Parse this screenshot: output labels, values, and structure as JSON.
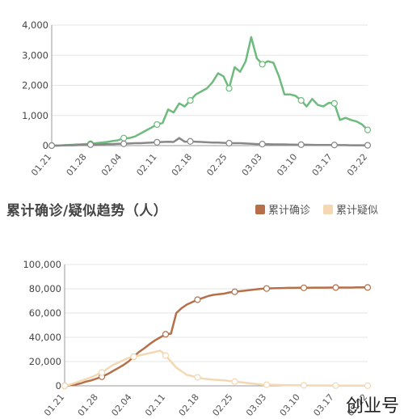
{
  "section_title": "累计确诊/疑似趋势（人）",
  "watermark": "创业号",
  "colors": {
    "confirmed": "#b5704a",
    "suspected": "#f3d8b3",
    "green": "#6dbb7d",
    "gray": "#888888",
    "grid": "#e6e6e6"
  },
  "chart_data": [
    {
      "type": "line",
      "x_ticks": [
        "01.21",
        "01.28",
        "02.04",
        "02.11",
        "02.18",
        "02.25",
        "03.03",
        "03.10",
        "03.17",
        "03.22"
      ],
      "ylim": [
        0,
        4000
      ],
      "y_ticks": [
        "0",
        "1,000",
        "2,000",
        "3,000",
        "4,000"
      ],
      "series": [
        {
          "color": "green",
          "values": [
            0,
            0,
            10,
            20,
            30,
            40,
            50,
            60,
            80,
            100,
            120,
            150,
            180,
            250,
            250,
            300,
            400,
            500,
            600,
            700,
            750,
            1200,
            1100,
            1400,
            1300,
            1500,
            1700,
            1800,
            1900,
            2100,
            2400,
            2300,
            1900,
            2600,
            2450,
            2800,
            3600,
            2900,
            2700,
            2800,
            2750,
            2300,
            1700,
            1700,
            1650,
            1500,
            1300,
            1550,
            1350,
            1300,
            1420,
            1400,
            850,
            920,
            850,
            800,
            700,
            520
          ],
          "markers": [
            0,
            7,
            13,
            19,
            25,
            32,
            38,
            45,
            51,
            57
          ]
        },
        {
          "color": "gray",
          "values": [
            0,
            0,
            5,
            10,
            10,
            20,
            20,
            30,
            30,
            40,
            50,
            50,
            60,
            60,
            70,
            80,
            80,
            90,
            100,
            110,
            120,
            130,
            120,
            250,
            130,
            140,
            130,
            120,
            110,
            100,
            100,
            90,
            80,
            80,
            80,
            70,
            60,
            50,
            50,
            45,
            40,
            40,
            40,
            35,
            30,
            30,
            30,
            25,
            20,
            20,
            20,
            20,
            15,
            15,
            10,
            10,
            10,
            10
          ],
          "markers": [
            0,
            7,
            13,
            19,
            25,
            32,
            38,
            45,
            51,
            57
          ]
        }
      ]
    },
    {
      "type": "line",
      "x_ticks": [
        "01.21",
        "01.28",
        "02.04",
        "02.11",
        "02.18",
        "02.25",
        "03.03",
        "03.10",
        "03.17",
        "03.22"
      ],
      "ylim": [
        0,
        100000
      ],
      "y_ticks": [
        "0",
        "20,000",
        "40,000",
        "60,000",
        "80,000",
        "100,000"
      ],
      "series": [
        {
          "name": "累计确诊",
          "color": "confirmed",
          "values": [
            0,
            500,
            1000,
            2000,
            3500,
            4500,
            6000,
            7500,
            9500,
            12000,
            14500,
            17000,
            20000,
            24000,
            28000,
            31000,
            34500,
            37500,
            40000,
            42500,
            43000,
            60000,
            64000,
            67000,
            69000,
            71000,
            72500,
            74000,
            75000,
            75500,
            76000,
            77000,
            77500,
            78000,
            78500,
            79000,
            79500,
            80000,
            80200,
            80400,
            80500,
            80600,
            80700,
            80700,
            80800,
            80800,
            80800,
            80900,
            80900,
            80900,
            81000,
            81000,
            81000,
            81000,
            81000,
            81100,
            81100,
            81100
          ],
          "markers": [
            0,
            7,
            13,
            19,
            25,
            32,
            38,
            45,
            51,
            57
          ]
        },
        {
          "name": "累计疑似",
          "color": "suspected",
          "values": [
            0,
            1000,
            2500,
            4000,
            5500,
            7000,
            9000,
            11000,
            14000,
            17000,
            19000,
            21000,
            23000,
            24000,
            25000,
            26000,
            27000,
            28000,
            29000,
            25000,
            20000,
            15000,
            12000,
            9000,
            8000,
            7000,
            6000,
            5500,
            5000,
            4800,
            4500,
            4000,
            3500,
            3000,
            2500,
            2000,
            1500,
            1000,
            900,
            800,
            700,
            600,
            500,
            450,
            400,
            400,
            350,
            300,
            300,
            250,
            250,
            200,
            200,
            150,
            150,
            100,
            100,
            100
          ],
          "markers": [
            0,
            7,
            13,
            19,
            25,
            32,
            38,
            45,
            51,
            57
          ]
        }
      ]
    }
  ]
}
